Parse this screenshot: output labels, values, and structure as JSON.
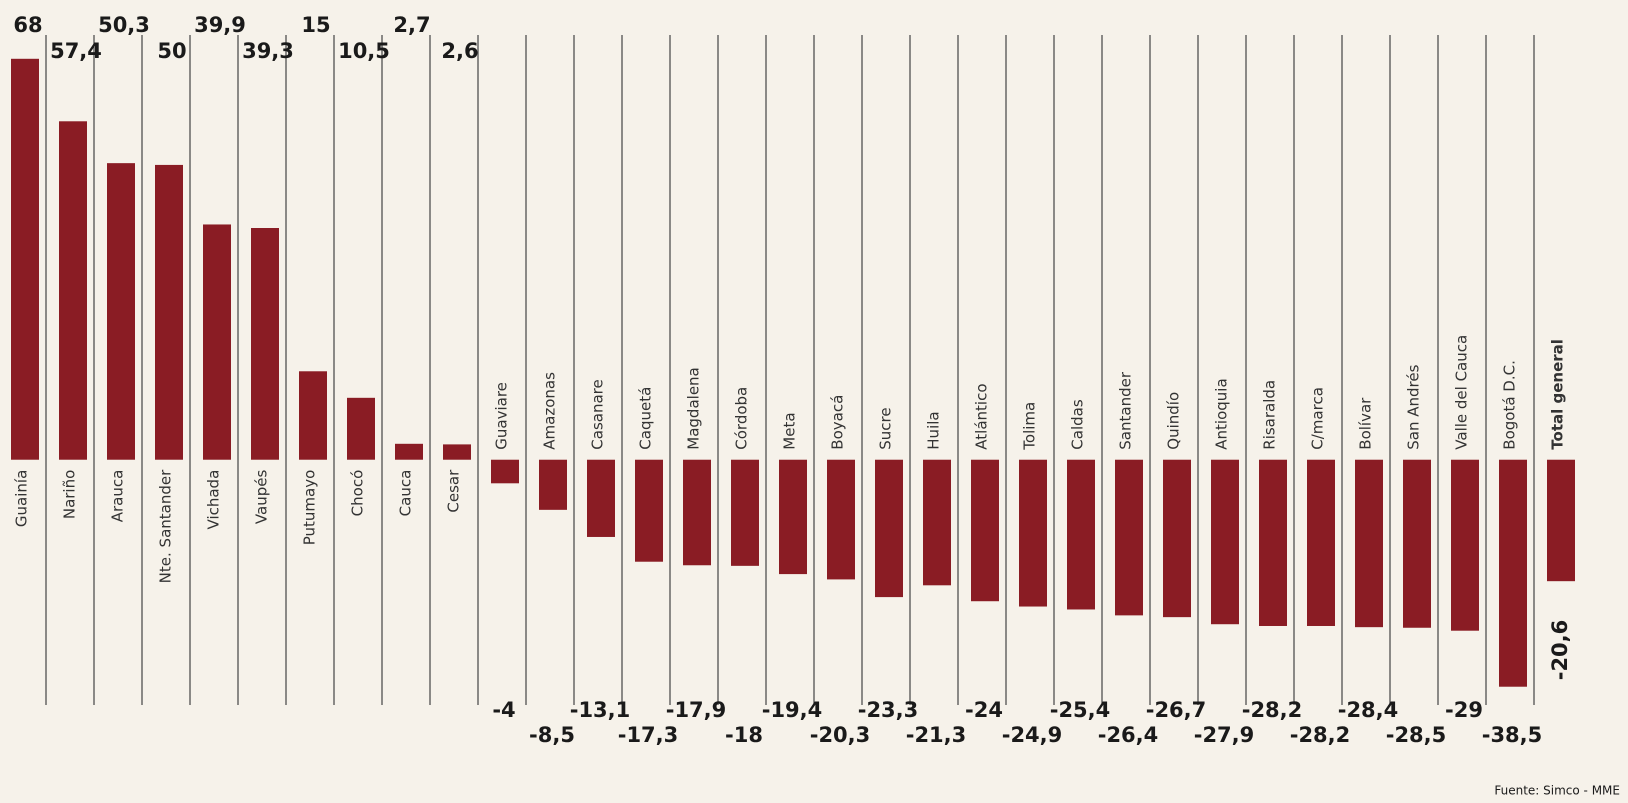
{
  "chart_data": {
    "type": "bar",
    "categories": [
      "Guainía",
      "Nariño",
      "Arauca",
      "Nte. Santander",
      "Vichada",
      "Vaupés",
      "Putumayo",
      "Chocó",
      "Cauca",
      "Cesar",
      "Guaviare",
      "Amazonas",
      "Casanare",
      "Caquetá",
      "Magdalena",
      "Córdoba",
      "Meta",
      "Boyacá",
      "Sucre",
      "Huila",
      "Atlántico",
      "Tolima",
      "Caldas",
      "Santander",
      "Quindío",
      "Antioquia",
      "Risaralda",
      "C/marca",
      "Bolívar",
      "San Andrés",
      "Valle del Cauca",
      "Bogotá D.C.",
      "Total general"
    ],
    "values": [
      68,
      57.4,
      50.3,
      50,
      39.9,
      39.3,
      15,
      10.5,
      2.7,
      2.6,
      -4,
      -8.5,
      -13.1,
      -17.3,
      -17.9,
      -18,
      -19.4,
      -20.3,
      -23.3,
      -21.3,
      -24,
      -24.9,
      -25.4,
      -26.4,
      -26.7,
      -27.9,
      -28.2,
      -28.2,
      -28.4,
      -28.5,
      -29,
      -38.5,
      -20.6
    ],
    "value_labels": [
      "68",
      "57,4",
      "50,3",
      "50",
      "39,9",
      "39,3",
      "15",
      "10,5",
      "2,7",
      "2,6",
      "-4",
      "-8,5",
      "-13,1",
      "-17,3",
      "-17,9",
      "-18",
      "-19,4",
      "-20,3",
      "-23,3",
      "-21,3",
      "-24",
      "-24,9",
      "-25,4",
      "-26,4",
      "-26,7",
      "-27,9",
      "-28,2",
      "-28,2",
      "-28,4",
      "-28,5",
      "-29",
      "-38,5",
      "-20,6"
    ],
    "color": "#8a1c24",
    "ylim": [
      -55,
      70
    ],
    "source": "Fuente: Simco - MME"
  }
}
